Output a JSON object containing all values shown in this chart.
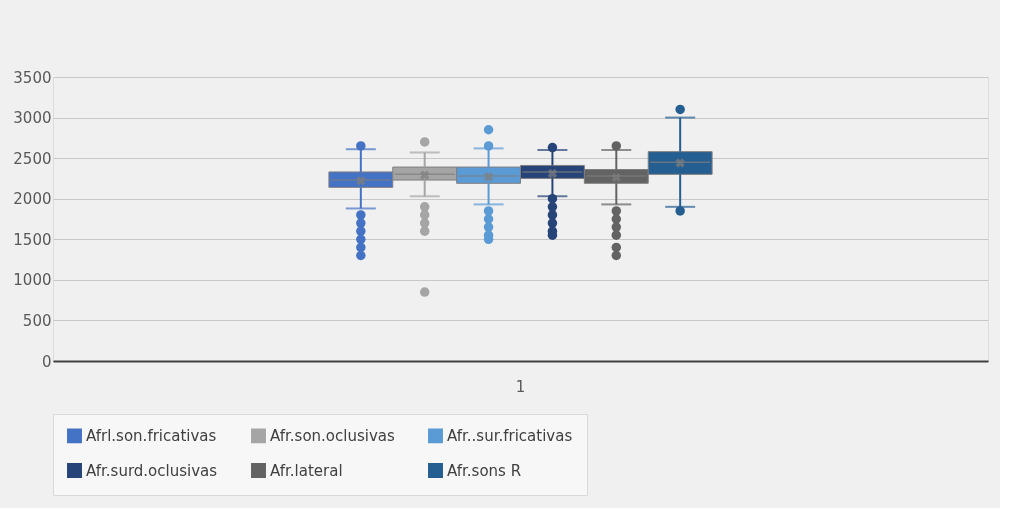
{
  "chart_data": {
    "type": "box",
    "categories": [
      "1"
    ],
    "ylim": [
      0,
      3500
    ],
    "yticks": [
      0,
      500,
      1000,
      1500,
      2000,
      2500,
      3000,
      3500
    ],
    "grid": "y",
    "legend": "bottom",
    "marker": "circle",
    "series": [
      {
        "name": "Afrl.son.fricativas",
        "color": "#4472c4",
        "boxes": [
          {
            "low": 1880,
            "q1": 2140,
            "median": 2230,
            "q3": 2330,
            "high": 2610,
            "mean": 2220,
            "outliers": [
              2650,
              1800,
              1700,
              1600,
              1500,
              1400,
              1300
            ]
          }
        ]
      },
      {
        "name": "Afr.son.oclusivas",
        "color": "#a5a5a5",
        "boxes": [
          {
            "low": 2030,
            "q1": 2230,
            "median": 2300,
            "q3": 2390,
            "high": 2570,
            "mean": 2290,
            "outliers": [
              2700,
              1900,
              1800,
              1700,
              1600,
              850
            ]
          }
        ]
      },
      {
        "name": "Afr..sur.fricativas",
        "color": "#5b9bd5",
        "boxes": [
          {
            "low": 1930,
            "q1": 2190,
            "median": 2280,
            "q3": 2390,
            "high": 2620,
            "mean": 2270,
            "outliers": [
              2850,
              2650,
              1850,
              1750,
              1650,
              1550,
              1500
            ]
          }
        ]
      },
      {
        "name": "Afr.surd.oclusivas",
        "color": "#264478",
        "boxes": [
          {
            "low": 2030,
            "q1": 2250,
            "median": 2330,
            "q3": 2410,
            "high": 2600,
            "mean": 2310,
            "outliers": [
              2630,
              2000,
              1900,
              1800,
              1700,
              1600,
              1550
            ]
          }
        ]
      },
      {
        "name": "Afr.lateral",
        "color": "#636363",
        "boxes": [
          {
            "low": 1930,
            "q1": 2190,
            "median": 2280,
            "q3": 2360,
            "high": 2600,
            "mean": 2260,
            "outliers": [
              2650,
              1850,
              1750,
              1650,
              1550,
              1400,
              1300
            ]
          }
        ]
      },
      {
        "name": "Afr.sons R",
        "color": "#255e91",
        "boxes": [
          {
            "low": 1900,
            "q1": 2300,
            "median": 2450,
            "q3": 2580,
            "high": 3000,
            "mean": 2440,
            "outliers": [
              3100,
              1850
            ]
          }
        ]
      }
    ]
  }
}
